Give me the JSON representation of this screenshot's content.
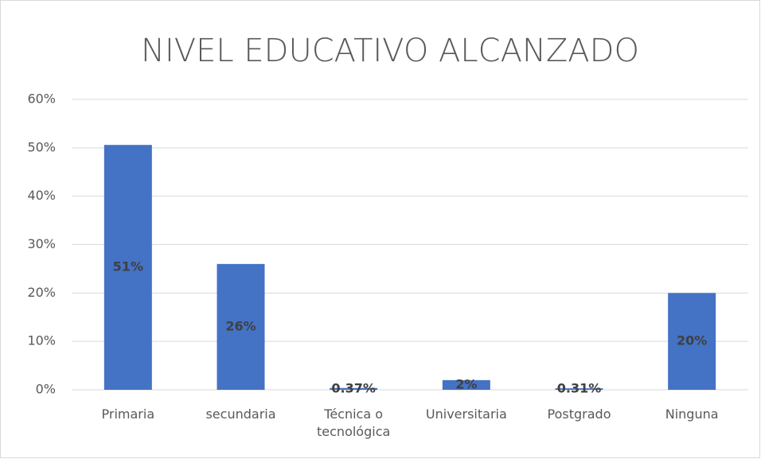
{
  "chart_data": {
    "type": "bar",
    "title": "NIVEL EDUCATIVO ALCANZADO",
    "categories": [
      "Primaria",
      "secundaria",
      "Técnica o tecnológica",
      "Universitaria",
      "Postgrado",
      "Ninguna"
    ],
    "values": [
      50.6,
      26,
      0.37,
      2,
      0.31,
      20
    ],
    "value_labels": [
      "51%",
      "26%",
      "0.37%",
      "2%",
      "0.31%",
      "20%"
    ],
    "color": "#4472c4",
    "ylim": [
      0,
      60
    ],
    "yticks": [
      {
        "value": 0,
        "label": "0%"
      },
      {
        "value": 10,
        "label": "10%"
      },
      {
        "value": 20,
        "label": "20%"
      },
      {
        "value": 30,
        "label": "30%"
      },
      {
        "value": 40,
        "label": "40%"
      },
      {
        "value": 50,
        "label": "50%"
      },
      {
        "value": 60,
        "label": "60%"
      }
    ],
    "grid": true
  }
}
